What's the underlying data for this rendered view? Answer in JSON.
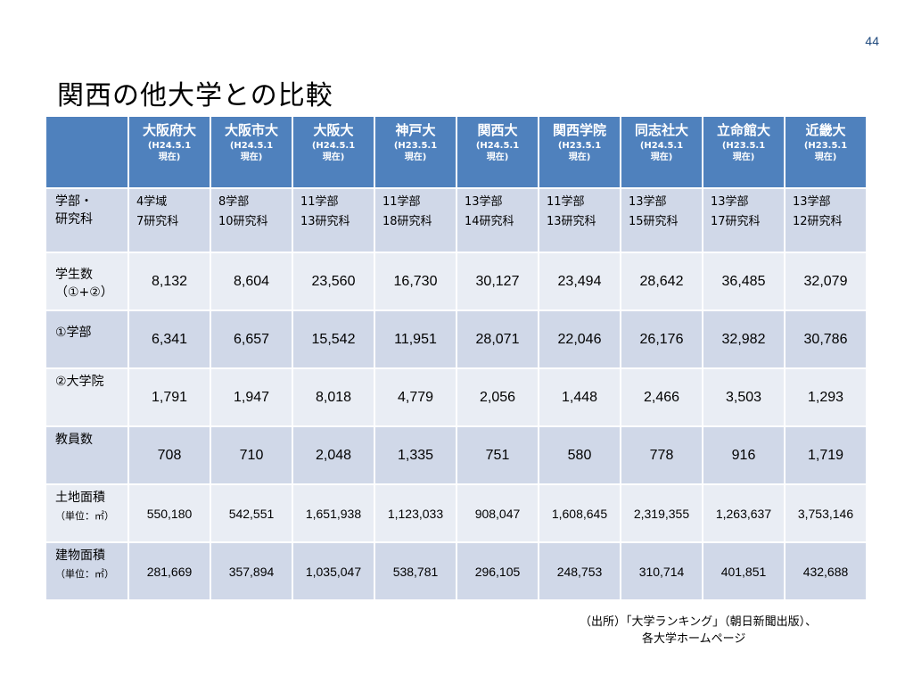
{
  "page_number": "44",
  "title": "関西の他大学との比較",
  "columns": [
    {
      "name": "大阪府大",
      "date": "(H24.5.1",
      "date2": "現在)"
    },
    {
      "name": "大阪市大",
      "date": "(H24.5.1",
      "date2": "現在)"
    },
    {
      "name": "大阪大",
      "date": "(H24.5.1",
      "date2": "現在)"
    },
    {
      "name": "神戸大",
      "date": "(H23.5.1",
      "date2": "現在)"
    },
    {
      "name": "関西大",
      "date": "(H24.5.1",
      "date2": "現在)"
    },
    {
      "name": "関西学院",
      "date": "(H23.5.1",
      "date2": "現在)"
    },
    {
      "name": "同志社大",
      "date": "(H24.5.1",
      "date2": "現在)"
    },
    {
      "name": "立命館大",
      "date": "(H23.5.1",
      "date2": "現在)"
    },
    {
      "name": "近畿大",
      "date": "(H23.5.1",
      "date2": "現在)"
    }
  ],
  "rows": {
    "faculty": {
      "label1": "学部・",
      "label2": "研究科",
      "values": [
        [
          "4学域",
          "7研究科"
        ],
        [
          "8学部",
          "10研究科"
        ],
        [
          "11学部",
          "13研究科"
        ],
        [
          "11学部",
          "18研究科"
        ],
        [
          "13学部",
          "14研究科"
        ],
        [
          "11学部",
          "13研究科"
        ],
        [
          "13学部",
          "15研究科"
        ],
        [
          "13学部",
          "17研究科"
        ],
        [
          "13学部",
          "12研究科"
        ]
      ]
    },
    "students": {
      "label1": "学生数",
      "label2": "（①+②）",
      "values": [
        "8,132",
        "8,604",
        "23,560",
        "16,730",
        "30,127",
        "23,494",
        "28,642",
        "36,485",
        "32,079"
      ]
    },
    "undergrad": {
      "label1": "①学部",
      "values": [
        "6,341",
        "6,657",
        "15,542",
        "11,951",
        "28,071",
        "22,046",
        "26,176",
        "32,982",
        "30,786"
      ]
    },
    "graduate": {
      "label1": "②大学院",
      "values": [
        "1,791",
        "1,947",
        "8,018",
        "4,779",
        "2,056",
        "1,448",
        "2,466",
        "3,503",
        "1,293"
      ]
    },
    "faculty_staff": {
      "label1": "教員数",
      "values": [
        "708",
        "710",
        "2,048",
        "1,335",
        "751",
        "580",
        "778",
        "916",
        "1,719"
      ]
    },
    "land_area": {
      "label1": "土地面積",
      "label2": "（単位：㎡）",
      "values": [
        "550,180",
        "542,551",
        "1,651,938",
        "1,123,033",
        "908,047",
        "1,608,645",
        "2,319,355",
        "1,263,637",
        "3,753,146"
      ]
    },
    "building_area": {
      "label1": "建物面積",
      "label2": "（単位：㎡）",
      "values": [
        "281,669",
        "357,894",
        "1,035,047",
        "538,781",
        "296,105",
        "248,753",
        "310,714",
        "401,851",
        "432,688"
      ]
    }
  },
  "source_line1": "（出所）「大学ランキング」（朝日新聞出版）、",
  "source_line2": "各大学ホームページ"
}
